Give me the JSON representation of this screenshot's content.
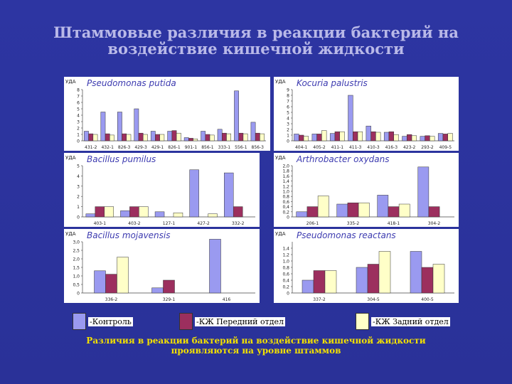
{
  "slide": {
    "title_line1": "Штаммовые различия в реакции бактерий на",
    "title_line2": "воздействие кишечной жидкости",
    "footer_line1": "Различия в реакции бактерий на воздействие кишечной жидкости",
    "footer_line2": "проявляются на уровне штаммов"
  },
  "legend": [
    {
      "label": "-Контроль",
      "color": "#9a9af0"
    },
    {
      "label": "-КЖ Передний отдел",
      "color": "#9c2f5e"
    },
    {
      "label": "-КЖ Задний отдел",
      "color": "#ffffc8"
    }
  ],
  "colors": {
    "control": "#9a9af0",
    "front": "#9c2f5e",
    "back": "#ffffc8",
    "background": "#2d35a2"
  },
  "chart_data": [
    {
      "type": "bar",
      "title": "Pseudomonas putida",
      "ylabel": "УДА",
      "ylim": [
        0,
        8
      ],
      "yticks": [
        "0",
        "1",
        "2",
        "3",
        "4",
        "5",
        "6",
        "7",
        "8"
      ],
      "categories": [
        "431-2",
        "432-1",
        "826-3",
        "429-3",
        "429-1",
        "826-1",
        "901-1",
        "856-1",
        "333-1",
        "556-1",
        "856-3"
      ],
      "series": [
        {
          "name": "-Контроль",
          "values": [
            1.5,
            4.5,
            4.5,
            5.0,
            1.5,
            1.5,
            0.5,
            1.5,
            1.8,
            7.8,
            2.9
          ]
        },
        {
          "name": "-КЖ Передний отдел",
          "values": [
            1.1,
            1.1,
            1.1,
            1.2,
            1.0,
            1.6,
            0.4,
            1.0,
            1.2,
            1.2,
            1.2
          ]
        },
        {
          "name": "-КЖ Задний отдел",
          "values": [
            1.0,
            0.9,
            1.0,
            1.0,
            1.0,
            1.2,
            0.3,
            0.9,
            1.1,
            1.1,
            1.1
          ]
        }
      ]
    },
    {
      "type": "bar",
      "title": "Kocuria palustris",
      "ylabel": "УДА",
      "ylim": [
        0,
        9
      ],
      "yticks": [
        "0",
        "1",
        "2",
        "3",
        "4",
        "5",
        "6",
        "7",
        "8",
        "9"
      ],
      "categories": [
        "404-1",
        "405-2",
        "411-1",
        "411-3",
        "410-3",
        "416-3",
        "423-2",
        "293-2",
        "409-5"
      ],
      "series": [
        {
          "name": "-Контроль",
          "values": [
            1.2,
            1.2,
            1.3,
            8.0,
            2.6,
            1.5,
            0.8,
            0.8,
            1.3
          ]
        },
        {
          "name": "-КЖ Передний отдел",
          "values": [
            1.0,
            1.2,
            1.6,
            1.6,
            1.6,
            1.6,
            1.1,
            0.9,
            1.2
          ]
        },
        {
          "name": "-КЖ Задний отдел",
          "values": [
            0.8,
            1.8,
            1.6,
            1.6,
            1.5,
            1.1,
            0.9,
            0.8,
            1.3
          ]
        }
      ]
    },
    {
      "type": "bar",
      "title": "Bacillus pumilus",
      "ylabel": "УДА",
      "ylim": [
        0,
        5
      ],
      "yticks": [
        "0",
        "1",
        "2",
        "3",
        "4",
        "5"
      ],
      "categories": [
        "403-1",
        "403-2",
        "127-1",
        "427-2",
        "332-2"
      ],
      "series": [
        {
          "name": "-Контроль",
          "values": [
            0.3,
            0.6,
            0.5,
            4.6,
            4.3
          ]
        },
        {
          "name": "-КЖ Передний отдел",
          "values": [
            1.0,
            1.0,
            0.0,
            0.0,
            1.0
          ]
        },
        {
          "name": "-КЖ Задний отдел",
          "values": [
            1.0,
            1.0,
            0.4,
            0.3,
            0.0
          ]
        }
      ]
    },
    {
      "type": "bar",
      "title": "Arthrobacter oxydans",
      "ylabel": "УДА",
      "ylim": [
        0,
        2.0
      ],
      "yticks": [
        "0",
        "0,2",
        "0,4",
        "0,6",
        "0,8",
        "1,0",
        "1,2",
        "1,4",
        "1,6",
        "1,8",
        "2,0"
      ],
      "categories": [
        "206-1",
        "335-2",
        "418-1",
        "304-2"
      ],
      "series": [
        {
          "name": "-Контроль",
          "values": [
            0.2,
            0.5,
            0.85,
            1.95
          ]
        },
        {
          "name": "-КЖ Передний отдел",
          "values": [
            0.4,
            0.55,
            0.4,
            0.4
          ]
        },
        {
          "name": "-КЖ Задний отдел",
          "values": [
            0.82,
            0.55,
            0.5,
            0.0
          ]
        }
      ]
    },
    {
      "type": "bar",
      "title": "Bacillus mojavensis",
      "ylabel": "УДА",
      "ylim": [
        0,
        3.0
      ],
      "yticks": [
        "0",
        "0,5",
        "1,0",
        "1,5",
        "2,0",
        "2,5",
        "3,0"
      ],
      "categories": [
        "336-2",
        "329-1",
        "416"
      ],
      "series": [
        {
          "name": "-Контроль",
          "values": [
            1.3,
            0.3,
            3.2
          ]
        },
        {
          "name": "-КЖ Передний отдел",
          "values": [
            1.1,
            0.75,
            0.0
          ]
        },
        {
          "name": "-КЖ Задний отдел",
          "values": [
            2.1,
            0.0,
            0.0
          ]
        }
      ]
    },
    {
      "type": "bar",
      "title": "Pseudomonas reactans",
      "ylabel": "УДА",
      "ylim": [
        0,
        1.6
      ],
      "yticks": [
        "0",
        "0,2",
        "0,4",
        "0,6",
        "0,8",
        "1,0",
        "1,2",
        "1,4"
      ],
      "categories": [
        "337-2",
        "304-5",
        "400-5"
      ],
      "series": [
        {
          "name": "-Контроль",
          "values": [
            0.4,
            0.8,
            1.3
          ]
        },
        {
          "name": "-КЖ Передний отдел",
          "values": [
            0.7,
            0.9,
            0.8
          ]
        },
        {
          "name": "-КЖ Задний отдел",
          "values": [
            0.7,
            1.3,
            0.9
          ]
        }
      ]
    }
  ]
}
